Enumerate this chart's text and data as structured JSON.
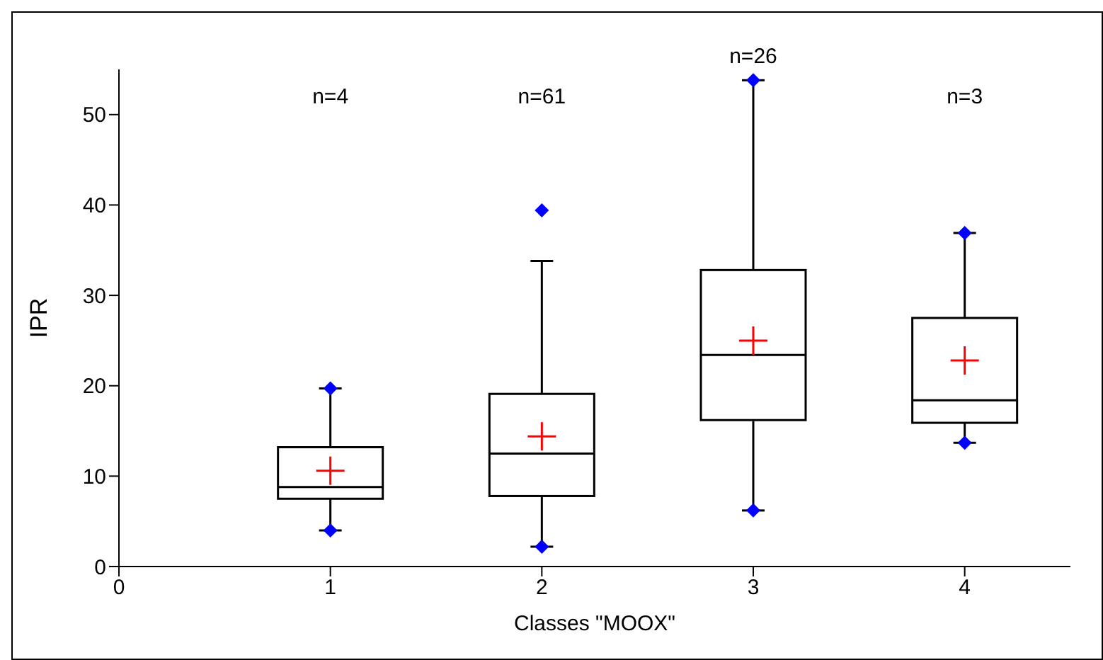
{
  "chart_data": {
    "type": "box",
    "xlabel": "Classes \"MOOX\"",
    "ylabel": "IPR",
    "x": [
      1,
      2,
      3,
      4
    ],
    "xlim": [
      0,
      4.5
    ],
    "xticks": [
      0,
      1,
      2,
      3,
      4
    ],
    "ylim": [
      0,
      55
    ],
    "yticks": [
      0,
      10,
      20,
      30,
      40,
      50
    ],
    "boxes": [
      {
        "low": 4.0,
        "q1": 7.5,
        "median": 8.8,
        "q3": 13.2,
        "high": 19.7,
        "mean": 10.6
      },
      {
        "low": 2.2,
        "q1": 7.8,
        "median": 12.5,
        "q3": 19.1,
        "high": 33.8,
        "mean": 14.4
      },
      {
        "low": 6.2,
        "q1": 16.2,
        "median": 23.4,
        "q3": 32.8,
        "high": 53.8,
        "mean": 25.0
      },
      {
        "low": 13.7,
        "q1": 15.9,
        "median": 18.4,
        "q3": 27.5,
        "high": 36.9,
        "mean": 22.8
      }
    ],
    "color": "#000000",
    "series": [
      {
        "type": "scatter",
        "marker": "diamond",
        "color": "#0000ff",
        "x": [
          1,
          1,
          2,
          2,
          3,
          3,
          4,
          4
        ],
        "values": [
          19.7,
          4.0,
          39.4,
          2.2,
          53.8,
          6.2,
          36.9,
          13.7
        ]
      }
    ],
    "annotations": [
      "n=4",
      "n=61",
      "n=26",
      "n=3"
    ],
    "grid": false,
    "legend": false
  }
}
